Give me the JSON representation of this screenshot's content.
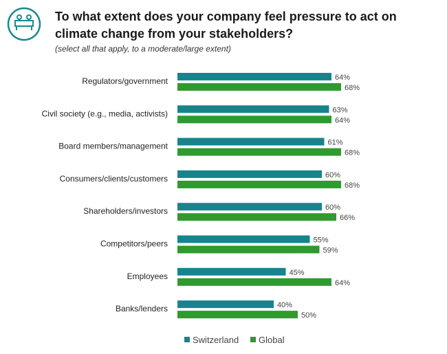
{
  "header": {
    "title": "To what extent does your company feel pressure to act on climate change from your stakeholders?",
    "subtitle": "(select all that apply, to a moderate/large extent)",
    "icon": "meeting-table-icon"
  },
  "colors": {
    "switzerland": "#17848c",
    "global": "#2f9a2f",
    "icon": "#1a8a8a"
  },
  "chart_data": {
    "type": "bar",
    "orientation": "horizontal",
    "title": "To what extent does your company feel pressure to act on climate change from your stakeholders?",
    "subtitle": "(select all that apply, to a moderate/large extent)",
    "categories": [
      "Regulators/government",
      "Civil society (e.g., media, activists)",
      "Board members/management",
      "Consumers/clients/customers",
      "Shareholders/investors",
      "Competitors/peers",
      "Employees",
      "Banks/lenders"
    ],
    "series": [
      {
        "name": "Switzerland",
        "values": [
          64,
          63,
          61,
          60,
          60,
          55,
          45,
          40
        ],
        "labels": [
          "64%",
          "63%",
          "61%",
          "60%",
          "60%",
          "55%",
          "45%",
          "40%"
        ]
      },
      {
        "name": "Global",
        "values": [
          68,
          64,
          68,
          68,
          66,
          59,
          64,
          50
        ],
        "labels": [
          "68%",
          "64%",
          "68%",
          "68%",
          "66%",
          "59%",
          "64%",
          "50%"
        ]
      }
    ],
    "xlim": [
      0,
      100
    ],
    "grid": false,
    "legend_position": "bottom"
  }
}
